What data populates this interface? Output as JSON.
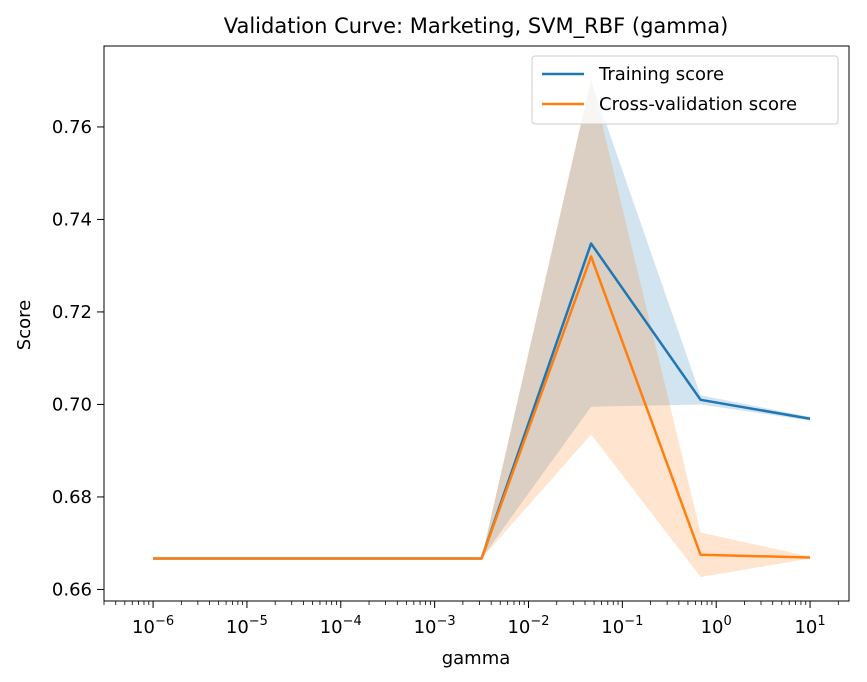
{
  "chart_data": {
    "type": "line",
    "title": "Validation Curve: Marketing, SVM_RBF (gamma)",
    "xlabel": "gamma",
    "ylabel": "Score",
    "xscale": "log",
    "xlim": [
      3e-07,
      26
    ],
    "ylim": [
      0.6575,
      0.7775
    ],
    "x": [
      1e-06,
      1.4678e-05,
      0.00021544,
      0.0031623,
      0.046416,
      0.68129,
      10
    ],
    "x_tick_labels": [
      {
        "base": "10",
        "exp": "−6",
        "value": 1e-06
      },
      {
        "base": "10",
        "exp": "−5",
        "value": 1e-05
      },
      {
        "base": "10",
        "exp": "−4",
        "value": 0.0001
      },
      {
        "base": "10",
        "exp": "−3",
        "value": 0.001
      },
      {
        "base": "10",
        "exp": "−2",
        "value": 0.01
      },
      {
        "base": "10",
        "exp": "−1",
        "value": 0.1
      },
      {
        "base": "10",
        "exp": "0",
        "value": 1
      },
      {
        "base": "10",
        "exp": "1",
        "value": 10
      }
    ],
    "y_ticks": [
      0.66,
      0.68,
      0.7,
      0.72,
      0.74,
      0.76
    ],
    "y_tick_labels": [
      "0.66",
      "0.68",
      "0.70",
      "0.72",
      "0.74",
      "0.76"
    ],
    "series": [
      {
        "name": "Training score",
        "color": "#1f77b4",
        "values": [
          0.6667,
          0.6667,
          0.6667,
          0.6667,
          0.7348,
          0.701,
          0.6969
        ],
        "band_lower": [
          0.6667,
          0.6667,
          0.6667,
          0.6667,
          0.6995,
          0.7,
          0.6965
        ],
        "band_upper": [
          0.6667,
          0.6667,
          0.6667,
          0.6667,
          0.7701,
          0.702,
          0.6973
        ],
        "band_opacity": 0.2
      },
      {
        "name": "Cross-validation score",
        "color": "#ff7f0e",
        "values": [
          0.6667,
          0.6667,
          0.6667,
          0.6667,
          0.732,
          0.6675,
          0.6669
        ],
        "band_lower": [
          0.6667,
          0.6667,
          0.6667,
          0.6667,
          0.6935,
          0.6627,
          0.6667
        ],
        "band_upper": [
          0.6667,
          0.6667,
          0.6667,
          0.6667,
          0.7705,
          0.6723,
          0.6671
        ],
        "band_opacity": 0.2
      }
    ],
    "legend": {
      "position": "upper right"
    },
    "grid": false
  }
}
